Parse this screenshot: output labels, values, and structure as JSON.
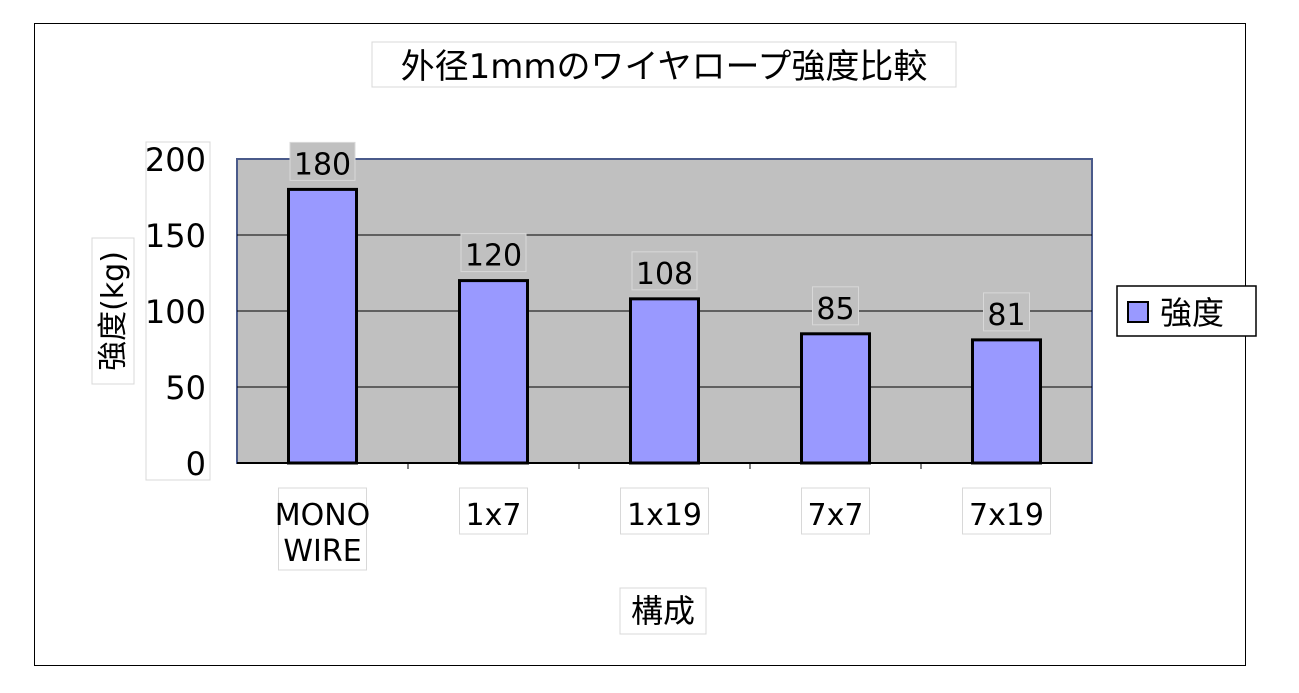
{
  "chart_data": {
    "type": "bar",
    "title": "外径1mmのワイヤロープ強度比較",
    "xlabel": "構成",
    "ylabel": "強度(kg)",
    "categories": [
      [
        "MONO",
        "WIRE"
      ],
      [
        "1x7"
      ],
      [
        "1x19"
      ],
      [
        "7x7"
      ],
      [
        "7x19"
      ]
    ],
    "series": [
      {
        "name": "強度",
        "values": [
          180,
          120,
          108,
          85,
          81
        ]
      }
    ],
    "data_labels": [
      "180",
      "120",
      "108",
      "85",
      "81"
    ],
    "ylim": [
      0,
      200
    ],
    "yticks": [
      "0",
      "50",
      "100",
      "150",
      "200"
    ],
    "grid": true,
    "legend_position": "right",
    "colors": {
      "bar_fill": "#9999ff",
      "bar_stroke": "#000000",
      "plot_bg": "#c0c0c0",
      "plot_border": "#4a5a8a",
      "gridline": "#000000"
    }
  }
}
